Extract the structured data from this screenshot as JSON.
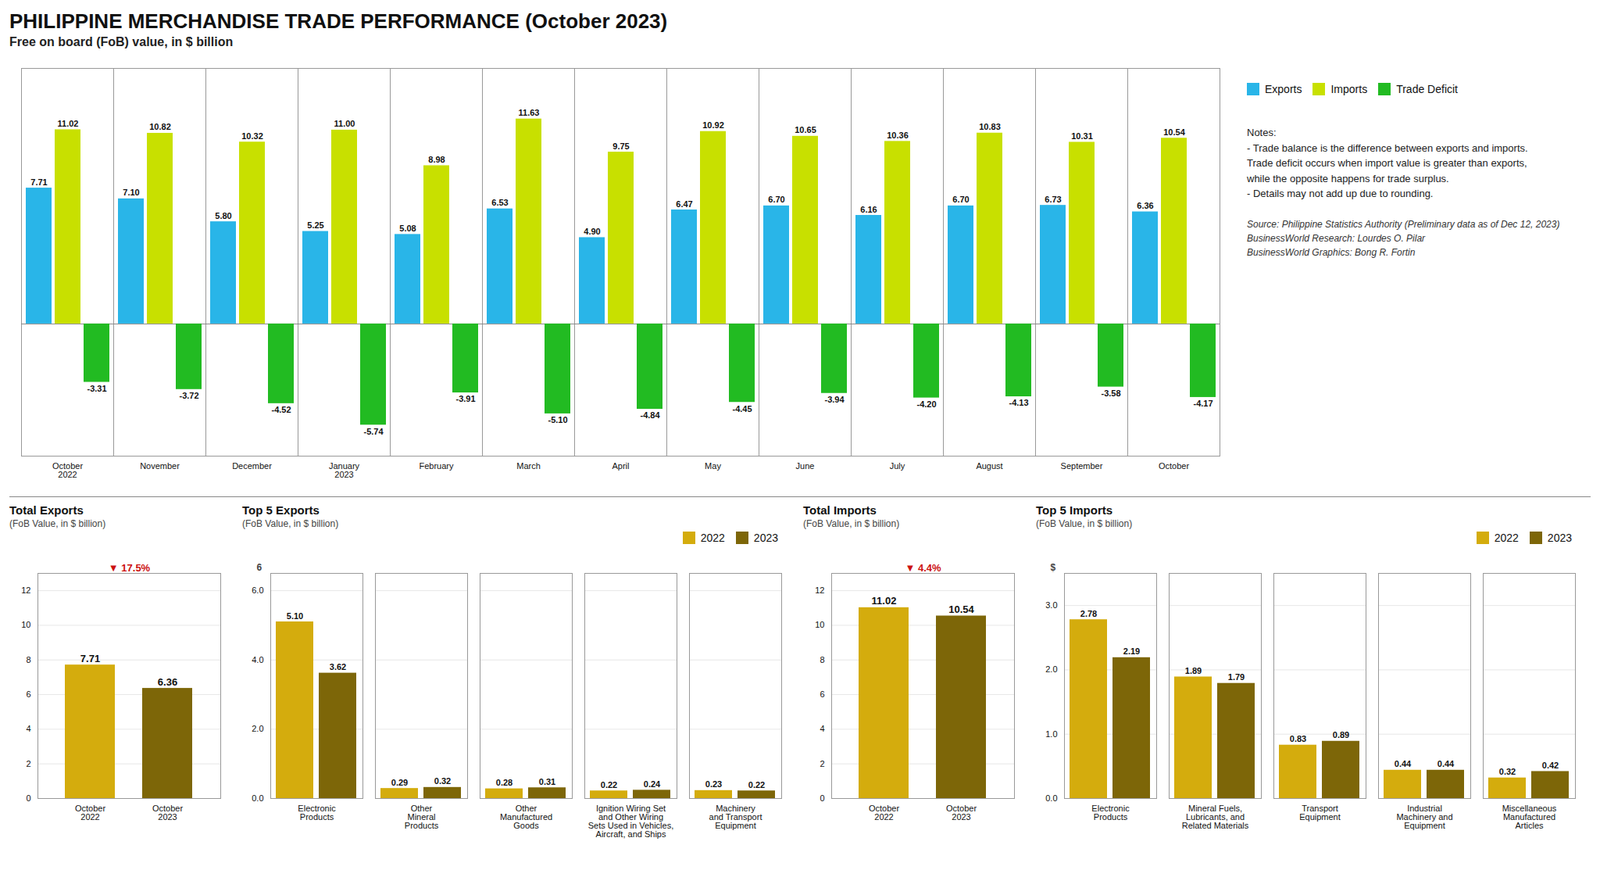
{
  "chart_data": [
    {
      "type": "bar",
      "title": "PHILIPPINE MERCHANDISE TRADE PERFORMANCE (October 2023)",
      "subtitle": "Free on board (FoB) value, in $ billion",
      "categories": [
        "October\n2022",
        "November",
        "December",
        "January\n2023",
        "February",
        "March",
        "April",
        "May",
        "June",
        "July",
        "August",
        "September",
        "October"
      ],
      "series": [
        {
          "name": "Exports",
          "color": "#29b5e8",
          "values": [
            7.71,
            7.1,
            5.8,
            5.25,
            5.08,
            6.53,
            4.9,
            6.47,
            6.7,
            6.16,
            6.7,
            6.73,
            6.36
          ],
          "value_labels": [
            "7.71",
            "7.10",
            "5.80",
            "5.25",
            "5.08",
            "6.53",
            "4.90",
            "6.47",
            "6.70",
            "6.16",
            "6.70",
            "6.73",
            "6.36"
          ]
        },
        {
          "name": "Imports",
          "color": "#c8e000",
          "values": [
            11.02,
            10.82,
            10.32,
            11.0,
            8.98,
            11.63,
            9.75,
            10.92,
            10.65,
            10.36,
            10.83,
            10.31,
            10.54
          ],
          "value_labels": [
            "11.02",
            "10.82",
            "10.32",
            "11.00",
            "8.98",
            "11.63",
            "9.75",
            "10.92",
            "10.65",
            "10.36",
            "10.83",
            "10.31",
            "10.54"
          ]
        },
        {
          "name": "Trade Deficit",
          "color": "#22bb22",
          "values": [
            -3.31,
            -3.72,
            -4.52,
            -5.74,
            -3.91,
            -5.1,
            -4.84,
            -4.45,
            -3.94,
            -4.2,
            -4.13,
            -3.58,
            -4.17
          ],
          "value_labels": [
            "-3.31",
            "-3.72",
            "-4.52",
            "-5.74",
            "-3.91",
            "-5.10",
            "-4.84",
            "-4.45",
            "-3.94",
            "-4.20",
            "-4.13",
            "-3.58",
            "-4.17"
          ]
        }
      ],
      "ylim": [
        -7.5,
        14.5
      ],
      "grid": false,
      "legend": "right",
      "data_labels": true,
      "tick_labels": "x",
      "notes": "Notes:\n- Trade balance is the difference between exports and imports.\nTrade deficit occurs when import value is greater than exports,\nwhile the opposite happens for trade surplus.\n- Details may not add up due to rounding.",
      "source": "Source: Philippine Statistics Authority (Preliminary data as of Dec 12, 2023)\nBusinessWorld Research: Lourdes O. Pilar\nBusinessWorld Graphics: Bong R. Fortin"
    },
    {
      "type": "bar",
      "title": "Total Exports",
      "subtitle": "(FoB Value, in $ billion)",
      "categories": [
        "October\n2022",
        "October\n2023"
      ],
      "values": [
        7.71,
        6.36
      ],
      "value_labels": [
        "7.71",
        "6.36"
      ],
      "colors": [
        "#d4ac0d",
        "#7d6608"
      ],
      "ylim": [
        0,
        13
      ],
      "yticks": [
        0,
        2,
        4,
        6,
        8,
        10,
        12
      ],
      "grid": true,
      "data_labels": true,
      "annotations": [
        {
          "text": "▼ 17.5%",
          "color": "#cc1111"
        }
      ]
    },
    {
      "type": "bar",
      "title": "Top 5 Exports",
      "subtitle": "(FoB Value, in $ billion)",
      "categories": [
        "Electronic\nProducts",
        "Other\nMineral\nProducts",
        "Other\nManufactured\nGoods",
        "Ignition Wiring Set\nand Other Wiring\nSets Used in Vehicles,\nAircraft, and Ships",
        "Machinery\nand Transport\nEquipment"
      ],
      "series": [
        {
          "name": "2022",
          "color": "#d4ac0d",
          "values": [
            5.1,
            0.29,
            0.28,
            0.22,
            0.23
          ],
          "value_labels": [
            "5.10",
            "0.29",
            "0.28",
            "0.22",
            "0.23"
          ]
        },
        {
          "name": "2023",
          "color": "#7d6608",
          "values": [
            3.62,
            0.32,
            0.31,
            0.24,
            0.22
          ],
          "value_labels": [
            "3.62",
            "0.32",
            "0.31",
            "0.24",
            "0.22"
          ]
        }
      ],
      "ylim": [
        0,
        6.5
      ],
      "yticks": [
        0,
        2,
        4,
        6
      ],
      "grid": true,
      "legend": "top-right",
      "data_labels": true,
      "annotations": [
        {
          "text": "6"
        }
      ]
    },
    {
      "type": "bar",
      "title": "Total Imports",
      "subtitle": "(FoB Value, in $ billion)",
      "categories": [
        "October\n2022",
        "October\n2023"
      ],
      "values": [
        11.02,
        10.54
      ],
      "value_labels": [
        "11.02",
        "10.54"
      ],
      "colors": [
        "#d4ac0d",
        "#7d6608"
      ],
      "ylim": [
        0,
        13
      ],
      "yticks": [
        0,
        2,
        4,
        6,
        8,
        10,
        12
      ],
      "grid": true,
      "data_labels": true,
      "annotations": [
        {
          "text": "▼ 4.4%",
          "color": "#cc1111"
        }
      ]
    },
    {
      "type": "bar",
      "title": "Top 5 Imports",
      "subtitle": "(FoB Value, in $ billion)",
      "categories": [
        "Electronic\nProducts",
        "Mineral Fuels,\nLubricants, and\nRelated Materials",
        "Transport\nEquipment",
        "Industrial\nMachinery and\nEquipment",
        "Miscellaneous\nManufactured\nArticles"
      ],
      "series": [
        {
          "name": "2022",
          "color": "#d4ac0d",
          "values": [
            2.78,
            1.89,
            0.83,
            0.44,
            0.32
          ],
          "value_labels": [
            "2.78",
            "1.89",
            "0.83",
            "0.44",
            "0.32"
          ]
        },
        {
          "name": "2023",
          "color": "#7d6608",
          "values": [
            2.19,
            1.79,
            0.89,
            0.44,
            0.42
          ],
          "value_labels": [
            "2.19",
            "1.79",
            "0.89",
            "0.44",
            "0.42"
          ]
        }
      ],
      "ylim": [
        0,
        3.5
      ],
      "yticks": [
        0,
        1,
        2,
        3
      ],
      "grid": true,
      "legend": "top-right",
      "data_labels": true,
      "annotations": [
        {
          "text": "$"
        }
      ]
    }
  ]
}
